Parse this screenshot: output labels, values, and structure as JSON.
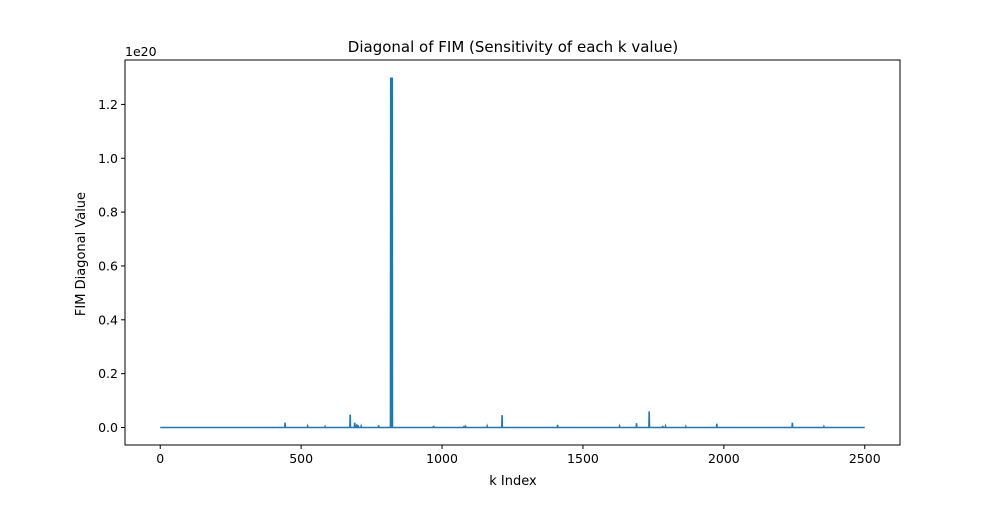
{
  "chart_data": {
    "type": "line",
    "title": "Diagonal of FIM (Sensitivity of each k value)",
    "xlabel": "k Index",
    "ylabel": "FIM Diagonal Value",
    "offset_label": "1e20",
    "xlim": [
      -125,
      2625
    ],
    "ylim": [
      -0.065,
      1.365
    ],
    "xticks": [
      0,
      500,
      1000,
      1500,
      2000,
      2500
    ],
    "xtick_labels": [
      "0",
      "500",
      "1000",
      "1500",
      "2000",
      "2500"
    ],
    "yticks": [
      0.0,
      0.2,
      0.4,
      0.6,
      0.8,
      1.0,
      1.2
    ],
    "ytick_labels": [
      "0.0",
      "0.2",
      "0.4",
      "0.6",
      "0.8",
      "1.0",
      "1.2"
    ],
    "grid": false,
    "line_color": "#1f77b4",
    "series": [
      {
        "x_range": [
          0,
          2500
        ],
        "baseline": 0.0,
        "spikes": [
          {
            "x": 443,
            "y": 0.018
          },
          {
            "x": 523,
            "y": 0.004
          },
          {
            "x": 585,
            "y": 0.003
          },
          {
            "x": 674,
            "y": 0.048
          },
          {
            "x": 690,
            "y": 0.018
          },
          {
            "x": 697,
            "y": 0.012
          },
          {
            "x": 702,
            "y": 0.008
          },
          {
            "x": 713,
            "y": 0.004
          },
          {
            "x": 775,
            "y": 0.008
          },
          {
            "x": 818,
            "y": 1.3
          },
          {
            "x": 823,
            "y": 1.3
          },
          {
            "x": 970,
            "y": 0.006
          },
          {
            "x": 1078,
            "y": 0.006
          },
          {
            "x": 1084,
            "y": 0.003
          },
          {
            "x": 1160,
            "y": 0.004
          },
          {
            "x": 1213,
            "y": 0.046
          },
          {
            "x": 1410,
            "y": 0.01
          },
          {
            "x": 1630,
            "y": 0.004
          },
          {
            "x": 1690,
            "y": 0.016
          },
          {
            "x": 1735,
            "y": 0.06
          },
          {
            "x": 1783,
            "y": 0.006
          },
          {
            "x": 1793,
            "y": 0.004
          },
          {
            "x": 1865,
            "y": 0.003
          },
          {
            "x": 1975,
            "y": 0.014
          },
          {
            "x": 2243,
            "y": 0.018
          },
          {
            "x": 2355,
            "y": 0.003
          }
        ]
      }
    ]
  }
}
